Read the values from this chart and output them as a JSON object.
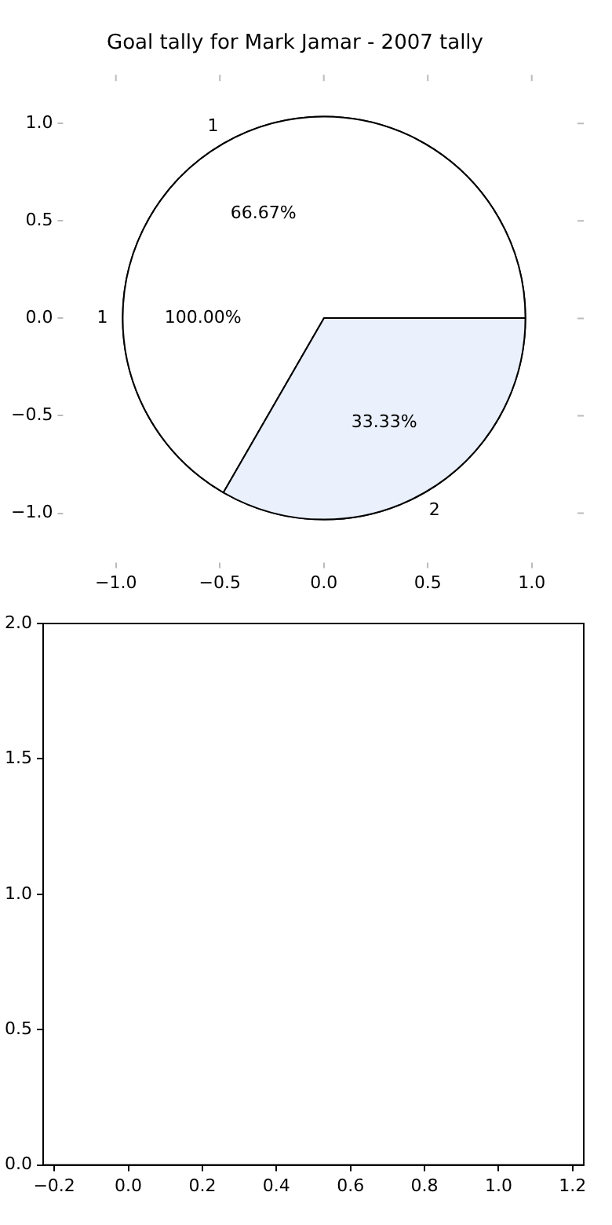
{
  "chart_data": [
    {
      "type": "scatter",
      "title": "Goal tally for Mark Jamar - 2007 tally",
      "xlim": [
        -1.25,
        1.25
      ],
      "ylim": [
        -1.25,
        1.25
      ],
      "xticks": [
        {
          "value": -1,
          "label": "−1.0"
        },
        -0.5,
        {
          "value": 0,
          "label": "0.0"
        },
        0.5,
        {
          "value": 1,
          "label": "1.0"
        }
      ],
      "yticks": [
        {
          "value": -1,
          "label": "−1.0"
        },
        -0.5,
        {
          "value": 0,
          "label": "0.0"
        },
        0.5,
        {
          "value": 1,
          "label": "1.0"
        }
      ]
    },
    {
      "type": "pie",
      "categories": [
        "1"
      ],
      "values": [
        100
      ],
      "colors": [
        "#ffffff"
      ],
      "value_labels": [
        "100.00%"
      ]
    },
    {
      "type": "pie",
      "categories": [
        "1",
        "2"
      ],
      "values": [
        66.67,
        33.33
      ],
      "colors": [
        "#ffffff",
        "#eaf0fc"
      ],
      "value_labels": [
        "66.67%",
        "33.33%"
      ]
    },
    {
      "type": "scatter",
      "xlim": [
        -0.23,
        1.23
      ],
      "ylim": [
        0,
        2
      ],
      "xticks": [
        -0.2,
        {
          "value": 0,
          "label": "0.0"
        },
        0.2,
        0.4,
        0.6,
        0.8,
        {
          "value": 1,
          "label": "1.0"
        },
        1.2
      ],
      "yticks": [
        {
          "value": 0,
          "label": "0.0"
        },
        0.5,
        {
          "value": 1,
          "label": "1.0"
        },
        1.5,
        {
          "value": 2,
          "label": "2.0"
        }
      ]
    }
  ]
}
